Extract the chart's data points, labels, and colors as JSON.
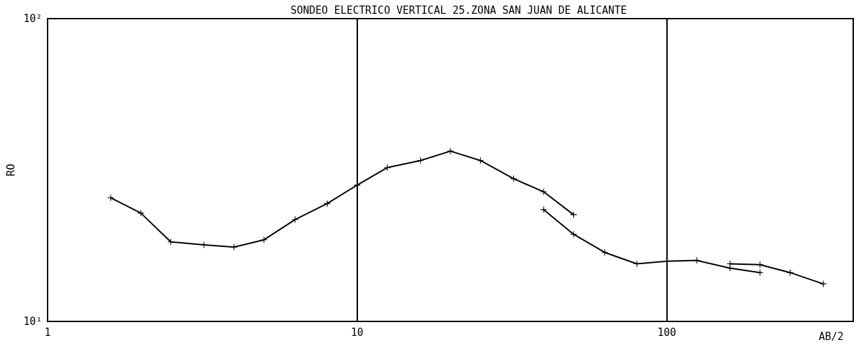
{
  "chart_data": {
    "type": "line",
    "title": "SONDEO ELECTRICO VERTICAL 25.ZONA SAN JUAN DE ALICANTE",
    "xlabel": "AB/2",
    "ylabel": "RO",
    "log": "xy",
    "grid": "x",
    "marker": "cross",
    "line_style": "solid",
    "xlim": [
      1,
      400
    ],
    "xticks": [
      1,
      10,
      100
    ],
    "ylim": [
      10,
      100
    ],
    "yticks": [
      {
        "value": 10,
        "label": "10¹"
      },
      {
        "value": 100,
        "label": "10²"
      }
    ],
    "series": [
      {
        "color": "#000000",
        "x": [
          1.6,
          2,
          2.5,
          3.2,
          4,
          5,
          6.3,
          8,
          10,
          12.5,
          16,
          20,
          25,
          32,
          40,
          50
        ],
        "values": [
          25.6,
          22.8,
          18.3,
          17.9,
          17.6,
          18.6,
          21.7,
          24.5,
          28.2,
          32.2,
          34.0,
          36.5,
          34.0,
          29.6,
          26.8,
          22.5
        ]
      },
      {
        "color": "#000000",
        "x": [
          40,
          50,
          63,
          80,
          100,
          125,
          160,
          200
        ],
        "values": [
          23.4,
          19.4,
          16.9,
          15.5,
          15.8,
          15.9,
          15.0,
          14.5
        ]
      },
      {
        "color": "#000000",
        "x": [
          160,
          200,
          250,
          320
        ],
        "values": [
          15.5,
          15.4,
          14.5,
          13.3
        ]
      }
    ]
  }
}
